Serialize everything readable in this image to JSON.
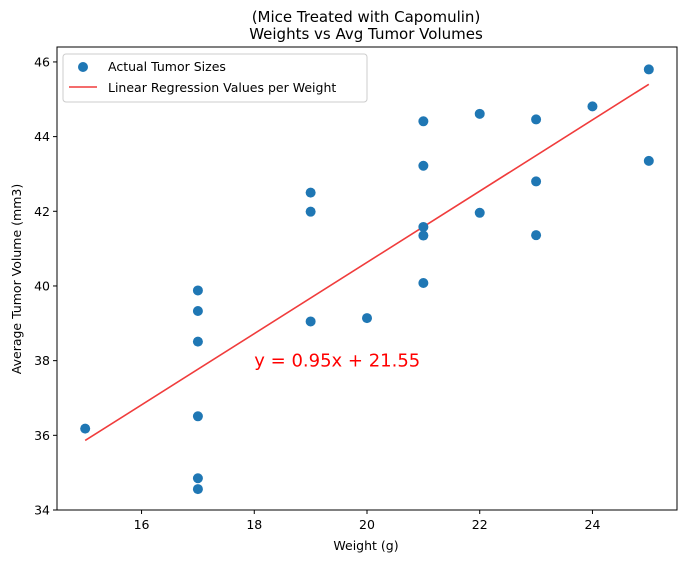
{
  "chart_data": {
    "type": "scatter",
    "title_line1": "(Mice Treated with Capomulin)",
    "title_line2": "Weights vs Avg Tumor Volumes",
    "xlabel": "Weight (g)",
    "ylabel": "Average Tumor Volume (mm3)",
    "xlim": [
      14.5,
      25.5
    ],
    "ylim": [
      34,
      46.4
    ],
    "xticks": [
      16,
      18,
      20,
      22,
      24
    ],
    "yticks": [
      34,
      36,
      38,
      40,
      42,
      44,
      46
    ],
    "grid": false,
    "legend_position": "top-left",
    "series": [
      {
        "name": "Actual Tumor Sizes",
        "kind": "scatter",
        "color": "#1f77b4",
        "points": [
          {
            "x": 15,
            "y": 36.18
          },
          {
            "x": 17,
            "y": 39.88
          },
          {
            "x": 17,
            "y": 39.33
          },
          {
            "x": 17,
            "y": 38.51
          },
          {
            "x": 17,
            "y": 36.51
          },
          {
            "x": 17,
            "y": 34.85
          },
          {
            "x": 17,
            "y": 34.56
          },
          {
            "x": 19,
            "y": 42.5
          },
          {
            "x": 19,
            "y": 41.99
          },
          {
            "x": 19,
            "y": 39.05
          },
          {
            "x": 20,
            "y": 39.14
          },
          {
            "x": 21,
            "y": 44.41
          },
          {
            "x": 21,
            "y": 43.22
          },
          {
            "x": 21,
            "y": 41.58
          },
          {
            "x": 21,
            "y": 41.35
          },
          {
            "x": 21,
            "y": 40.08
          },
          {
            "x": 22,
            "y": 44.61
          },
          {
            "x": 22,
            "y": 41.96
          },
          {
            "x": 23,
            "y": 44.46
          },
          {
            "x": 23,
            "y": 42.8
          },
          {
            "x": 23,
            "y": 41.36
          },
          {
            "x": 24,
            "y": 44.81
          },
          {
            "x": 25,
            "y": 45.8
          },
          {
            "x": 25,
            "y": 43.35
          }
        ]
      },
      {
        "name": "Linear Regression Values per Weight",
        "kind": "line",
        "color": "#f03c3c",
        "slope": 0.954,
        "intercept": 21.552,
        "x_range": [
          15,
          25
        ]
      }
    ],
    "annotation": {
      "text": "y = 0.95x + 21.55",
      "x": 18,
      "y": 38,
      "color": "#ff0000"
    }
  }
}
